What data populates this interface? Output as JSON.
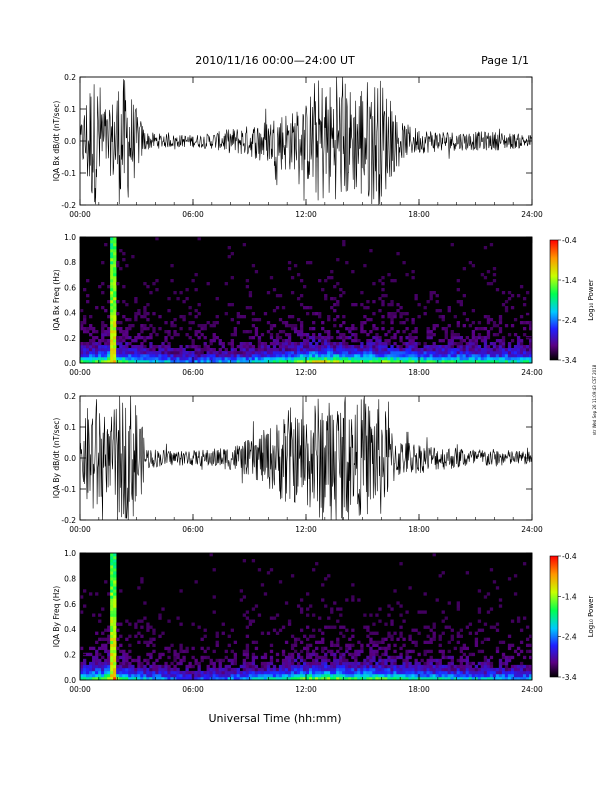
{
  "header": {
    "title": "2010/11/16  00:00—24:00 UT",
    "page": "Page 1/1"
  },
  "side_stamp": "ntr Wed Sep 26 11:09:43 CST 2018",
  "footer": {
    "xlabel": "Universal Time (hh:mm)"
  },
  "colors": {
    "trace": "#000000",
    "background": "#000000"
  },
  "chart_data": [
    {
      "type": "line",
      "ylabel": "IQA Bx dB/dt (nT/sec)",
      "x_ticks": [
        "00:00",
        "06:00",
        "12:00",
        "18:00",
        "24:00"
      ],
      "y_ticks": [
        "-0.2",
        "-0.1",
        "0.0",
        "0.1",
        "0.2"
      ],
      "xlim": [
        0,
        24
      ],
      "ylim": [
        -0.2,
        0.2
      ],
      "envelope_hours": [
        0,
        0.5,
        1.0,
        1.5,
        2.0,
        2.5,
        3.0,
        3.5,
        4.0,
        5.0,
        6.0,
        7.0,
        8.0,
        9.0,
        10.0,
        10.5,
        11.0,
        11.5,
        12.0,
        12.5,
        13.0,
        13.5,
        14.0,
        14.5,
        15.0,
        15.5,
        16.0,
        16.5,
        17.0,
        18.0,
        19.0,
        20.0,
        21.0,
        22.0,
        23.0,
        24.0
      ],
      "envelope_amp": [
        0.04,
        0.2,
        0.2,
        0.08,
        0.2,
        0.2,
        0.1,
        0.03,
        0.025,
        0.02,
        0.02,
        0.025,
        0.04,
        0.05,
        0.07,
        0.09,
        0.1,
        0.09,
        0.12,
        0.2,
        0.2,
        0.18,
        0.2,
        0.16,
        0.2,
        0.2,
        0.2,
        0.12,
        0.06,
        0.04,
        0.035,
        0.03,
        0.03,
        0.03,
        0.025,
        0.02
      ]
    },
    {
      "type": "heatmap",
      "ylabel": "IQA Bx Freq (Hz)",
      "x_ticks": [
        "00:00",
        "06:00",
        "12:00",
        "18:00",
        "24:00"
      ],
      "y_ticks": [
        "0.0",
        "0.2",
        "0.4",
        "0.6",
        "0.8",
        "1.0"
      ],
      "xlim": [
        0,
        24
      ],
      "ylim": [
        0,
        1.0
      ],
      "colorbar": {
        "label": "Log₁₀ Power",
        "ticks": [
          "-0.4",
          "-1.4",
          "-2.4",
          "-3.4"
        ],
        "range": [
          -3.4,
          -0.4
        ]
      }
    },
    {
      "type": "line",
      "ylabel": "IQA By dB/dt (nT/sec)",
      "x_ticks": [
        "00:00",
        "06:00",
        "12:00",
        "18:00",
        "24:00"
      ],
      "y_ticks": [
        "-0.2",
        "-0.1",
        "0.0",
        "0.1",
        "0.2"
      ],
      "xlim": [
        0,
        24
      ],
      "ylim": [
        -0.2,
        0.2
      ],
      "envelope_hours": [
        0,
        0.5,
        1.0,
        1.5,
        2.0,
        2.5,
        3.0,
        3.5,
        4.0,
        5.0,
        6.0,
        7.0,
        8.0,
        9.0,
        10.0,
        10.5,
        11.0,
        11.5,
        12.0,
        12.5,
        13.0,
        13.5,
        14.0,
        14.5,
        15.0,
        15.5,
        16.0,
        16.5,
        17.0,
        18.0,
        19.0,
        20.0,
        21.0,
        22.0,
        23.0,
        24.0
      ],
      "envelope_amp": [
        0.04,
        0.2,
        0.2,
        0.1,
        0.2,
        0.2,
        0.2,
        0.04,
        0.03,
        0.025,
        0.025,
        0.03,
        0.04,
        0.06,
        0.1,
        0.12,
        0.18,
        0.14,
        0.16,
        0.2,
        0.2,
        0.18,
        0.2,
        0.16,
        0.2,
        0.18,
        0.2,
        0.1,
        0.06,
        0.05,
        0.04,
        0.035,
        0.03,
        0.03,
        0.025,
        0.02
      ]
    },
    {
      "type": "heatmap",
      "ylabel": "IQA By Freq (Hz)",
      "x_ticks": [
        "00:00",
        "06:00",
        "12:00",
        "18:00",
        "24:00"
      ],
      "y_ticks": [
        "0.0",
        "0.2",
        "0.4",
        "0.6",
        "0.8",
        "1.0"
      ],
      "xlim": [
        0,
        24
      ],
      "ylim": [
        0,
        1.0
      ],
      "colorbar": {
        "label": "Log₁₀ Power",
        "ticks": [
          "-0.4",
          "-1.4",
          "-2.4",
          "-3.4"
        ],
        "range": [
          -3.4,
          -0.4
        ]
      }
    }
  ]
}
